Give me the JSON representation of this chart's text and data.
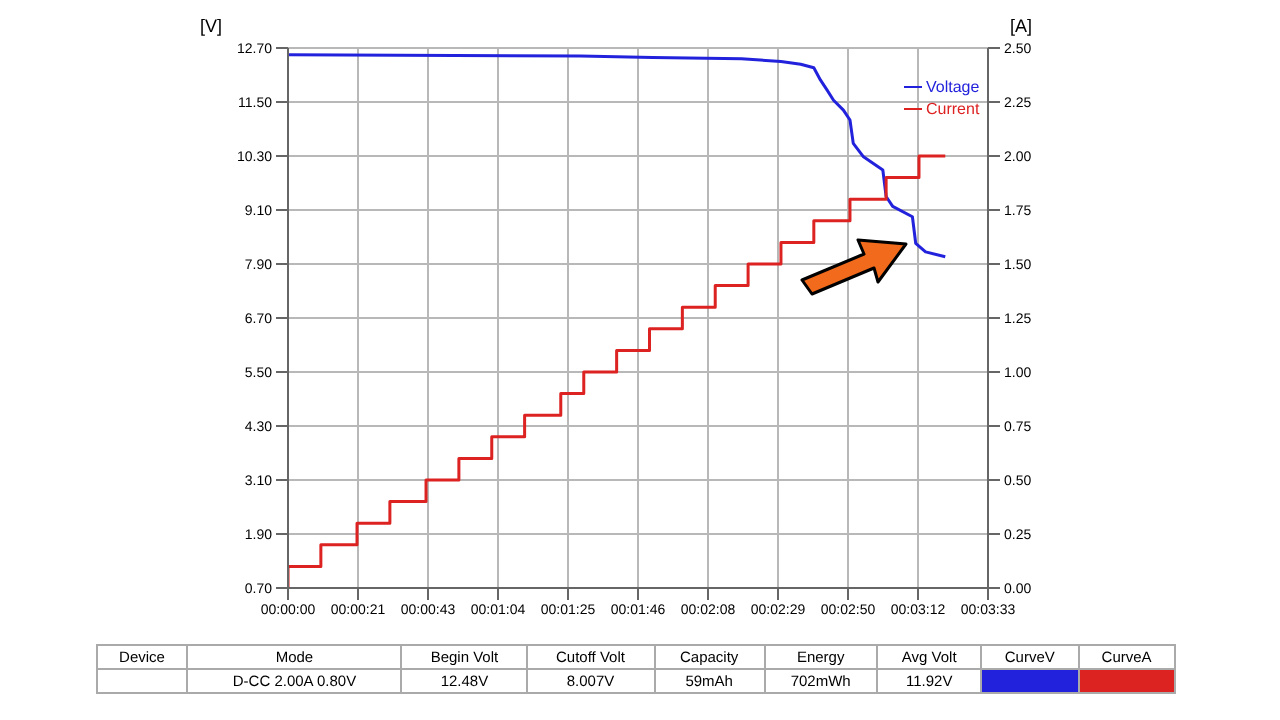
{
  "chart_data": {
    "type": "line",
    "ylabel": "[V]",
    "y2label": "[A]",
    "xlim": [
      0,
      213
    ],
    "xticks": [
      {
        "value": 0,
        "label": "00:00:00"
      },
      {
        "value": 21.3,
        "label": "00:00:21"
      },
      {
        "value": 42.6,
        "label": "00:00:43"
      },
      {
        "value": 63.9,
        "label": "00:01:04"
      },
      {
        "value": 85.2,
        "label": "00:01:25"
      },
      {
        "value": 106.5,
        "label": "00:01:46"
      },
      {
        "value": 127.8,
        "label": "00:02:08"
      },
      {
        "value": 149.1,
        "label": "00:02:29"
      },
      {
        "value": 170.4,
        "label": "00:02:50"
      },
      {
        "value": 191.7,
        "label": "00:03:12"
      },
      {
        "value": 213,
        "label": "00:03:33"
      }
    ],
    "ylim": [
      0.7,
      12.7
    ],
    "yticks": [
      {
        "value": 0.7,
        "label": "0.70"
      },
      {
        "value": 1.9,
        "label": "1.90"
      },
      {
        "value": 3.1,
        "label": "3.10"
      },
      {
        "value": 4.3,
        "label": "4.30"
      },
      {
        "value": 5.5,
        "label": "5.50"
      },
      {
        "value": 6.7,
        "label": "6.70"
      },
      {
        "value": 7.9,
        "label": "7.90"
      },
      {
        "value": 9.1,
        "label": "9.10"
      },
      {
        "value": 10.3,
        "label": "10.30"
      },
      {
        "value": 11.5,
        "label": "11.50"
      },
      {
        "value": 12.7,
        "label": "12.70"
      }
    ],
    "y2lim": [
      0,
      2.5
    ],
    "y2ticks": [
      {
        "value": 0,
        "label": "0.00"
      },
      {
        "value": 0.25,
        "label": "0.25"
      },
      {
        "value": 0.5,
        "label": "0.50"
      },
      {
        "value": 0.75,
        "label": "0.75"
      },
      {
        "value": 1,
        "label": "1.00"
      },
      {
        "value": 1.25,
        "label": "1.25"
      },
      {
        "value": 1.5,
        "label": "1.50"
      },
      {
        "value": 1.75,
        "label": "1.75"
      },
      {
        "value": 2,
        "label": "2.00"
      },
      {
        "value": 2.25,
        "label": "2.25"
      },
      {
        "value": 2.5,
        "label": "2.50"
      }
    ],
    "grid": true,
    "legend": "top right",
    "series": [
      {
        "name": "Voltage",
        "color": "#2222dd",
        "type": "line",
        "x": [
          0,
          89,
          111,
          138,
          150,
          156,
          160,
          162,
          164,
          166,
          169,
          171,
          172,
          175,
          178,
          181,
          182,
          184,
          190,
          191,
          194,
          200
        ],
        "values": [
          12.55,
          12.52,
          12.49,
          12.46,
          12.4,
          12.34,
          12.26,
          11.99,
          11.77,
          11.54,
          11.32,
          11.1,
          10.58,
          10.29,
          10.14,
          9.99,
          9.4,
          9.18,
          8.95,
          8.36,
          8.17,
          8.06
        ]
      },
      {
        "name": "Current",
        "color": "#dd2222",
        "type": "step",
        "axis": "y2",
        "x": [
          0,
          0,
          10,
          21,
          31,
          42,
          52,
          62,
          72,
          83,
          90,
          100,
          110,
          120,
          130,
          140,
          150,
          160,
          171,
          182,
          192,
          200
        ],
        "values": [
          0,
          0.1,
          0.2,
          0.3,
          0.4,
          0.5,
          0.6,
          0.7,
          0.8,
          0.9,
          1.0,
          1.1,
          1.2,
          1.3,
          1.4,
          1.5,
          1.6,
          1.7,
          1.8,
          1.9,
          2.0,
          2.0
        ]
      }
    ],
    "annotations": [
      "Device",
      "Mode",
      "Begin Volt",
      "Cutoff Volt",
      "Capacity",
      "Energy",
      "Avg Volt",
      "CurveV",
      "CurveA",
      "D-CC 2.00A 0.80V",
      "12.48V",
      "8.007V",
      "59mAh",
      "702mWh",
      "11.92V"
    ]
  }
}
